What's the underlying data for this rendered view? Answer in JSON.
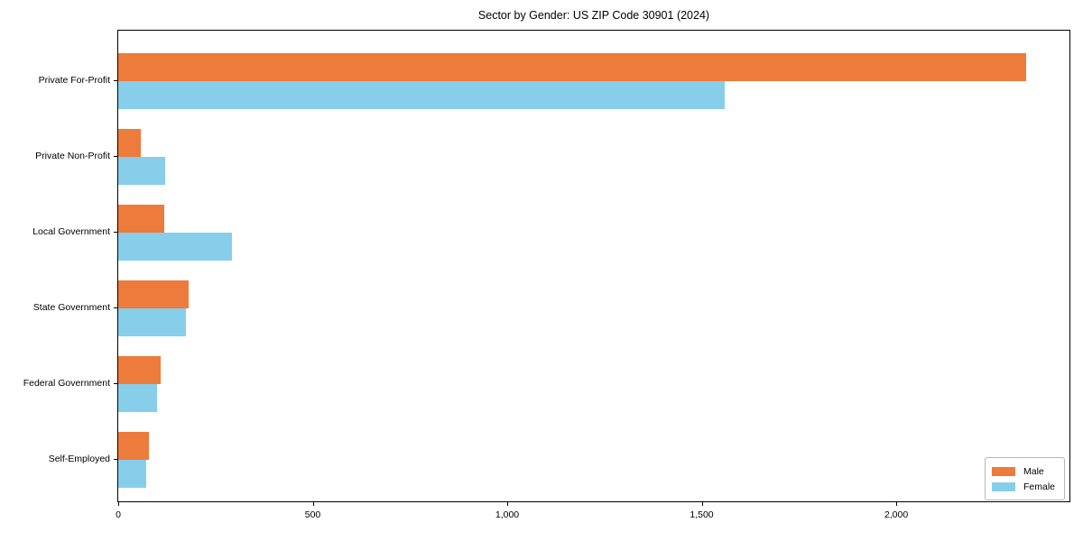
{
  "chart_data": {
    "type": "bar",
    "orientation": "horizontal",
    "title": "Sector by Gender: US ZIP Code 30901 (2024)",
    "xlabel": "",
    "ylabel": "",
    "categories": [
      "Private For-Profit",
      "Private Non-Profit",
      "Local Government",
      "State Government",
      "Federal Government",
      "Self-Employed"
    ],
    "series": [
      {
        "name": "Male",
        "color": "#ED7B3C",
        "values": [
          2335,
          58,
          119,
          182,
          109,
          79
        ]
      },
      {
        "name": "Female",
        "color": "#87CEEB",
        "values": [
          1558,
          121,
          292,
          174,
          100,
          72
        ]
      }
    ],
    "xlim": [
      0,
      2450
    ],
    "xticks": [
      {
        "value": 0,
        "label": "0"
      },
      {
        "value": 500,
        "label": "500"
      },
      {
        "value": 1000,
        "label": "1,000"
      },
      {
        "value": 1500,
        "label": "1,500"
      },
      {
        "value": 2000,
        "label": "2,000"
      }
    ],
    "grid": false,
    "legend": {
      "position": "lower-right",
      "entries": [
        "Male",
        "Female"
      ]
    }
  }
}
